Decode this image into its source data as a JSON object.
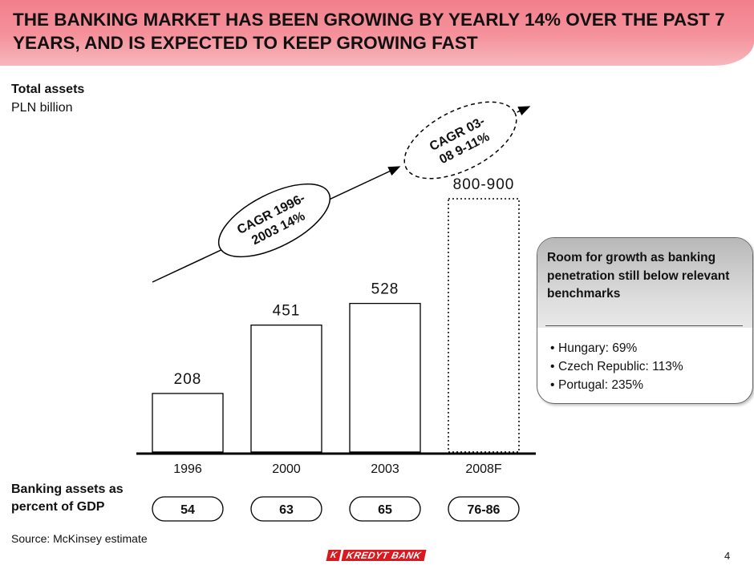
{
  "header": {
    "title": "THE BANKING MARKET HAS BEEN GROWING BY YEARLY 14% OVER THE PAST 7 YEARS, AND IS EXPECTED TO KEEP GROWING FAST"
  },
  "chart_data": {
    "type": "bar",
    "title": "Total assets",
    "ylabel": "PLN billion",
    "categories": [
      "1996",
      "2000",
      "2003",
      "2008F"
    ],
    "values": [
      208,
      451,
      528,
      850
    ],
    "value_labels": [
      "208",
      "451",
      "528",
      "800-900"
    ],
    "forecast_range": [
      800,
      900
    ],
    "ylim": [
      0,
      900
    ],
    "grid": false,
    "gdp_label": "Banking assets as percent of GDP",
    "gdp_values": [
      "54",
      "63",
      "65",
      "76-86"
    ],
    "annotations": [
      {
        "line1": "CAGR 1996-",
        "line2": "2003 14%"
      },
      {
        "line1": "CAGR 03-",
        "line2": "08 9-11%"
      }
    ],
    "colors": {
      "bar_fill": "#ffffff",
      "bar_stroke": "#000000",
      "forecast_stroke": "#000000",
      "axis": "#000000"
    }
  },
  "callout": {
    "heading": "Room for growth as banking penetration still below relevant benchmarks",
    "items": [
      "Hungary: 69%",
      "Czech Republic: 113%",
      "Portugal: 235%"
    ]
  },
  "source": "Source:  McKinsey estimate",
  "page_number": "4",
  "logo": {
    "mark": "K",
    "text": "KREDYT BANK"
  },
  "colors": {
    "header": "#f27f8c",
    "brand": "#d71920"
  }
}
